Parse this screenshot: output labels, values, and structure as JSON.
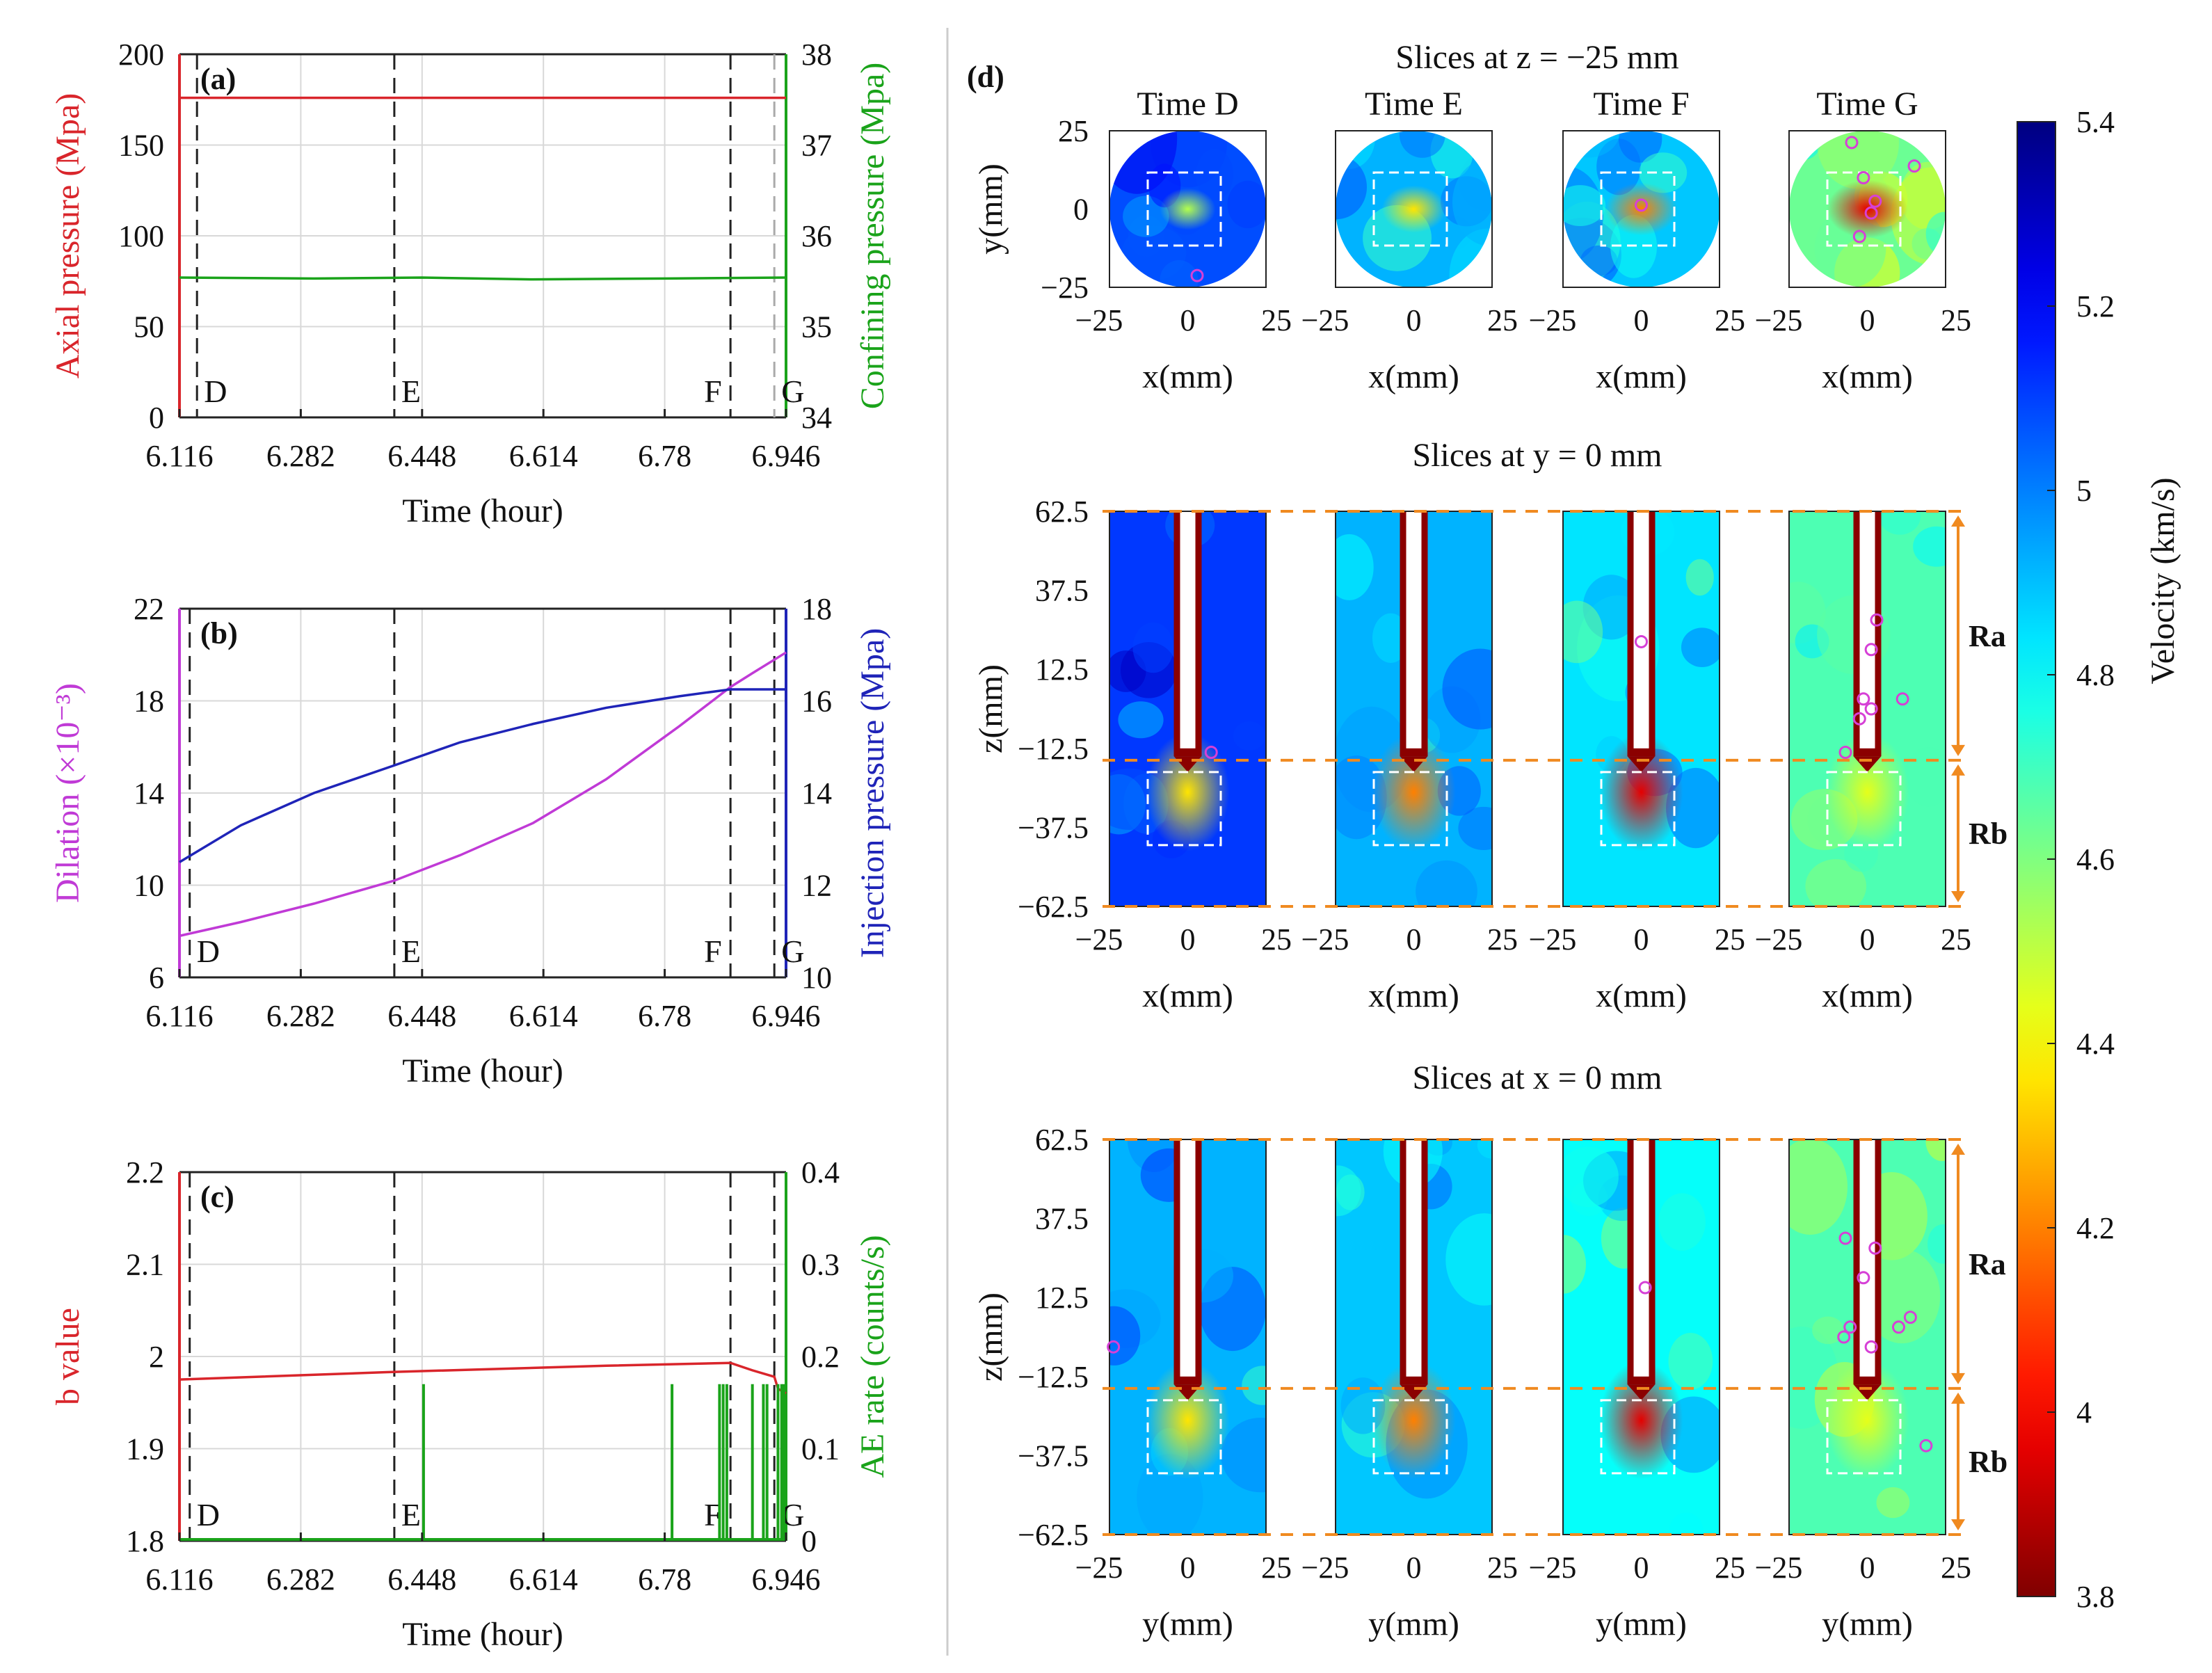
{
  "colors": {
    "red": "#d9252b",
    "green": "#1aa31a",
    "purple": "#c03ad6",
    "blue": "#1f24b8",
    "orange": "#f08a20",
    "magenta": "#d640d6",
    "grid": "#d8d8d8",
    "dash": "#222222"
  },
  "chart_data": [
    {
      "id": "a",
      "type": "line",
      "panel_label": "(a)",
      "xlabel": "Time (hour)",
      "xlim": [
        6.116,
        6.946
      ],
      "xticks": [
        6.116,
        6.282,
        6.448,
        6.614,
        6.78,
        6.946
      ],
      "xtick_labels": [
        "6.116",
        "6.282",
        "6.448",
        "6.614",
        "6.78",
        "6.946"
      ],
      "ylabel_left": "Axial pressure  (Mpa)",
      "ylim_left": [
        0,
        200
      ],
      "yticks_left": [
        0,
        50,
        100,
        150,
        200
      ],
      "ylabel_right": "Confining pressure (Mpa)",
      "ylim_right": [
        34,
        38
      ],
      "yticks_right": [
        34,
        35,
        36,
        37,
        38
      ],
      "series": [
        {
          "name": "Axial pressure",
          "axis": "left",
          "color": "red",
          "x": [
            6.116,
            6.946
          ],
          "y": [
            176,
            176
          ]
        },
        {
          "name": "Confining pressure",
          "axis": "right",
          "color": "green",
          "x": [
            6.116,
            6.3,
            6.448,
            6.6,
            6.78,
            6.946
          ],
          "y": [
            35.54,
            35.53,
            35.54,
            35.52,
            35.53,
            35.54
          ]
        }
      ],
      "markers": [
        {
          "label": "D",
          "x": 6.14
        },
        {
          "label": "E",
          "x": 6.41
        },
        {
          "label": "F",
          "x": 6.87
        },
        {
          "label": "G",
          "x": 6.93
        }
      ]
    },
    {
      "id": "b",
      "type": "line",
      "panel_label": "(b)",
      "xlabel": "Time (hour)",
      "xlim": [
        6.116,
        6.946
      ],
      "xticks": [
        6.116,
        6.282,
        6.448,
        6.614,
        6.78,
        6.946
      ],
      "xtick_labels": [
        "6.116",
        "6.282",
        "6.448",
        "6.614",
        "6.78",
        "6.946"
      ],
      "ylabel_left": "Dilation  (×10⁻³)",
      "ylim_left": [
        6,
        22
      ],
      "yticks_left": [
        6,
        10,
        14,
        18,
        22
      ],
      "ylabel_right": "Injection pressure (Mpa)",
      "ylim_right": [
        10,
        18
      ],
      "yticks_right": [
        10,
        12,
        14,
        16,
        18
      ],
      "series": [
        {
          "name": "Dilation",
          "axis": "left",
          "color": "purple",
          "x": [
            6.116,
            6.2,
            6.3,
            6.41,
            6.5,
            6.6,
            6.7,
            6.8,
            6.87,
            6.9,
            6.946
          ],
          "y": [
            7.8,
            8.4,
            9.2,
            10.2,
            11.3,
            12.7,
            14.6,
            16.9,
            18.6,
            19.2,
            20.1
          ]
        },
        {
          "name": "Injection pressure",
          "axis": "right",
          "color": "blue",
          "x": [
            6.116,
            6.2,
            6.3,
            6.41,
            6.5,
            6.6,
            6.7,
            6.8,
            6.87,
            6.93,
            6.946
          ],
          "y": [
            12.5,
            13.3,
            14.0,
            14.6,
            15.1,
            15.5,
            15.85,
            16.1,
            16.25,
            16.25,
            16.25
          ]
        }
      ],
      "markers": [
        {
          "label": "D",
          "x": 6.13
        },
        {
          "label": "E",
          "x": 6.41
        },
        {
          "label": "F",
          "x": 6.87
        },
        {
          "label": "G",
          "x": 6.93
        }
      ]
    },
    {
      "id": "c",
      "type": "line",
      "panel_label": "(c)",
      "xlabel": "Time (hour)",
      "xlim": [
        6.116,
        6.946
      ],
      "xticks": [
        6.116,
        6.282,
        6.448,
        6.614,
        6.78,
        6.946
      ],
      "xtick_labels": [
        "6.116",
        "6.282",
        "6.448",
        "6.614",
        "6.78",
        "6.946"
      ],
      "ylabel_left": "b value",
      "ylim_left": [
        1.8,
        2.2
      ],
      "yticks_left": [
        1.8,
        1.9,
        2.0,
        2.1,
        2.2
      ],
      "ytick_labels_left": [
        "1.8",
        "1.9",
        "2",
        "2.1",
        "2.2"
      ],
      "ylabel_right": "AE rate (counts/s)",
      "ylim_right": [
        0,
        0.4
      ],
      "yticks_right": [
        0,
        0.1,
        0.2,
        0.3,
        0.4
      ],
      "ytick_labels_right": [
        "0",
        "0.1",
        "0.2",
        "0.3",
        "0.4"
      ],
      "series": [
        {
          "name": "b value",
          "axis": "left",
          "color": "red",
          "x": [
            6.116,
            6.4,
            6.7,
            6.87,
            6.9,
            6.93,
            6.935,
            6.946
          ],
          "y": [
            1.975,
            1.983,
            1.99,
            1.993,
            1.985,
            1.978,
            1.965,
            1.96
          ]
        },
        {
          "name": "AE rate",
          "axis": "right",
          "color": "green",
          "type": "spikes",
          "x": [
            6.45,
            6.79,
            6.855,
            6.86,
            6.865,
            6.9,
            6.915,
            6.92,
            6.935,
            6.94,
            6.943
          ],
          "y": [
            0.17,
            0.17,
            0.17,
            0.17,
            0.17,
            0.17,
            0.17,
            0.17,
            0.17,
            0.17,
            0.17
          ]
        }
      ],
      "markers": [
        {
          "label": "D",
          "x": 6.13
        },
        {
          "label": "E",
          "x": 6.41
        },
        {
          "label": "F",
          "x": 6.87
        },
        {
          "label": "G",
          "x": 6.93
        }
      ]
    },
    {
      "id": "d",
      "type": "heatmap",
      "panel_label": "(d)",
      "times": [
        "Time D",
        "Time E",
        "Time F",
        "Time G"
      ],
      "rows": [
        {
          "title": "Slices at z = −25 mm",
          "shape": "circle",
          "xlabel": "x(mm)",
          "ylabel": "y(mm)",
          "xticks": [
            "−25",
            "0",
            "25"
          ],
          "yticks": [
            "25",
            "0",
            "−25"
          ],
          "background_levels": [
            0.2,
            0.3,
            0.32,
            0.48
          ],
          "events": [
            [
              [
                0.12,
                -0.85
              ]
            ],
            [],
            [
              [
                0.0,
                0.05
              ]
            ],
            [
              [
                -0.2,
                0.85
              ],
              [
                -0.05,
                0.4
              ],
              [
                0.1,
                0.1
              ],
              [
                0.05,
                -0.05
              ],
              [
                -0.1,
                -0.35
              ],
              [
                0.6,
                0.55
              ]
            ]
          ]
        },
        {
          "title": "Slices at y = 0 mm",
          "shape": "rect",
          "xlabel": "x(mm)",
          "ylabel": "z(mm)",
          "xticks": [
            "−25",
            "0",
            "25"
          ],
          "yticks": [
            "62.5",
            "37.5",
            "12.5",
            "−12.5",
            "−37.5",
            "−62.5"
          ],
          "background_levels": [
            0.18,
            0.3,
            0.35,
            0.45
          ],
          "events": [
            [
              [
                0.3,
                -0.22
              ]
            ],
            [],
            [
              [
                0.0,
                0.34
              ]
            ],
            [
              [
                0.12,
                0.45
              ],
              [
                0.05,
                0.3
              ],
              [
                -0.05,
                0.05
              ],
              [
                0.05,
                0.0
              ],
              [
                -0.1,
                -0.05
              ],
              [
                0.45,
                0.05
              ],
              [
                -0.28,
                -0.22
              ]
            ]
          ]
        },
        {
          "title": "Slices at x = 0 mm",
          "shape": "rect",
          "xlabel": "y(mm)",
          "ylabel": "z(mm)",
          "xticks": [
            "−25",
            "0",
            "25"
          ],
          "yticks": [
            "62.5",
            "37.5",
            "12.5",
            "−12.5",
            "−37.5",
            "−62.5"
          ],
          "background_levels": [
            0.3,
            0.32,
            0.38,
            0.45
          ],
          "events": [
            [
              [
                -0.95,
                -0.05
              ]
            ],
            [],
            [
              [
                0.05,
                0.25
              ]
            ],
            [
              [
                -0.28,
                0.5
              ],
              [
                0.1,
                0.45
              ],
              [
                -0.05,
                0.3
              ],
              [
                -0.3,
                0.0
              ],
              [
                -0.22,
                0.05
              ],
              [
                0.05,
                -0.05
              ],
              [
                0.4,
                0.05
              ],
              [
                0.55,
                0.1
              ],
              [
                0.75,
                -0.55
              ]
            ]
          ]
        }
      ],
      "region_labels": [
        "Ra",
        "Rb"
      ],
      "colorbar": {
        "label": "Velocity (km/s)",
        "min": 3.8,
        "max": 5.4,
        "ticks": [
          "5.4",
          "5.2",
          "5",
          "4.8",
          "4.6",
          "4.4",
          "4.2",
          "4",
          "3.8"
        ],
        "colormap": "jet_r"
      }
    }
  ]
}
